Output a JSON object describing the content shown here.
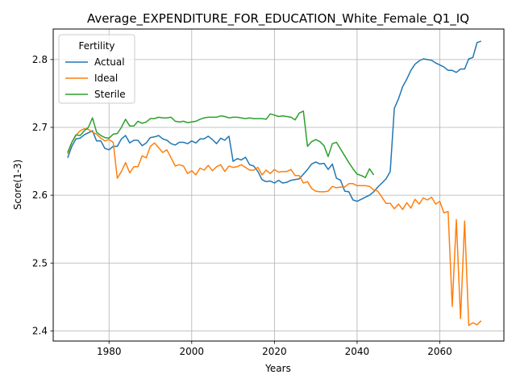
{
  "chart_data": {
    "type": "line",
    "title": "Average_EXPENDITURE_FOR_EDUCATION_White_Female_Q1_IQ",
    "xlabel": "Years",
    "ylabel": "Score(1-3)",
    "xlim": [
      1966.5,
      2075.5
    ],
    "ylim": [
      2.385,
      2.845
    ],
    "xticks": [
      1980,
      2000,
      2020,
      2040,
      2060
    ],
    "yticks": [
      2.4,
      2.5,
      2.6,
      2.7,
      2.8
    ],
    "grid": true,
    "legend": {
      "title": "Fertility",
      "placement": "upper left"
    },
    "series": [
      {
        "name": "Actual",
        "color": "#1f77b4",
        "points": [
          [
            1970,
            2.655
          ],
          [
            1971,
            2.672
          ],
          [
            1972,
            2.683
          ],
          [
            1973,
            2.684
          ],
          [
            1974,
            2.689
          ],
          [
            1975,
            2.692
          ],
          [
            1976,
            2.695
          ],
          [
            1977,
            2.68
          ],
          [
            1978,
            2.68
          ],
          [
            1979,
            2.669
          ],
          [
            1980,
            2.667
          ],
          [
            1981,
            2.672
          ],
          [
            1982,
            2.672
          ],
          [
            1983,
            2.683
          ],
          [
            1984,
            2.688
          ],
          [
            1985,
            2.677
          ],
          [
            1986,
            2.681
          ],
          [
            1987,
            2.681
          ],
          [
            1988,
            2.673
          ],
          [
            1989,
            2.677
          ],
          [
            1990,
            2.685
          ],
          [
            1991,
            2.686
          ],
          [
            1992,
            2.688
          ],
          [
            1993,
            2.683
          ],
          [
            1994,
            2.681
          ],
          [
            1995,
            2.676
          ],
          [
            1996,
            2.674
          ],
          [
            1997,
            2.678
          ],
          [
            1998,
            2.678
          ],
          [
            1999,
            2.676
          ],
          [
            2000,
            2.68
          ],
          [
            2001,
            2.677
          ],
          [
            2002,
            2.683
          ],
          [
            2003,
            2.683
          ],
          [
            2004,
            2.687
          ],
          [
            2005,
            2.682
          ],
          [
            2006,
            2.676
          ],
          [
            2007,
            2.684
          ],
          [
            2008,
            2.681
          ],
          [
            2009,
            2.687
          ],
          [
            2010,
            2.65
          ],
          [
            2011,
            2.654
          ],
          [
            2012,
            2.652
          ],
          [
            2013,
            2.656
          ],
          [
            2014,
            2.645
          ],
          [
            2015,
            2.643
          ],
          [
            2016,
            2.635
          ],
          [
            2017,
            2.623
          ],
          [
            2018,
            2.62
          ],
          [
            2019,
            2.621
          ],
          [
            2020,
            2.618
          ],
          [
            2021,
            2.622
          ],
          [
            2022,
            2.618
          ],
          [
            2023,
            2.619
          ],
          [
            2024,
            2.622
          ],
          [
            2025,
            2.623
          ],
          [
            2026,
            2.624
          ],
          [
            2027,
            2.631
          ],
          [
            2028,
            2.638
          ],
          [
            2029,
            2.646
          ],
          [
            2030,
            2.649
          ],
          [
            2031,
            2.646
          ],
          [
            2032,
            2.647
          ],
          [
            2033,
            2.638
          ],
          [
            2034,
            2.646
          ],
          [
            2035,
            2.625
          ],
          [
            2036,
            2.622
          ],
          [
            2037,
            2.606
          ],
          [
            2038,
            2.605
          ],
          [
            2039,
            2.593
          ],
          [
            2040,
            2.591
          ],
          [
            2041,
            2.594
          ],
          [
            2042,
            2.597
          ],
          [
            2043,
            2.6
          ],
          [
            2044,
            2.605
          ],
          [
            2045,
            2.612
          ],
          [
            2046,
            2.618
          ],
          [
            2047,
            2.624
          ],
          [
            2048,
            2.635
          ],
          [
            2049,
            2.728
          ],
          [
            2050,
            2.742
          ],
          [
            2051,
            2.76
          ],
          [
            2052,
            2.771
          ],
          [
            2053,
            2.784
          ],
          [
            2054,
            2.793
          ],
          [
            2055,
            2.798
          ],
          [
            2056,
            2.801
          ],
          [
            2057,
            2.8
          ],
          [
            2058,
            2.799
          ],
          [
            2059,
            2.795
          ],
          [
            2060,
            2.792
          ],
          [
            2061,
            2.789
          ],
          [
            2062,
            2.784
          ],
          [
            2063,
            2.784
          ],
          [
            2064,
            2.781
          ],
          [
            2065,
            2.786
          ],
          [
            2066,
            2.786
          ],
          [
            2067,
            2.801
          ],
          [
            2068,
            2.803
          ],
          [
            2069,
            2.825
          ],
          [
            2070,
            2.827
          ]
        ]
      },
      {
        "name": "Ideal",
        "color": "#ff7f0e",
        "points": [
          [
            1970,
            2.661
          ],
          [
            1971,
            2.678
          ],
          [
            1972,
            2.688
          ],
          [
            1973,
            2.695
          ],
          [
            1974,
            2.698
          ],
          [
            1975,
            2.697
          ],
          [
            1976,
            2.693
          ],
          [
            1977,
            2.69
          ],
          [
            1978,
            2.684
          ],
          [
            1979,
            2.68
          ],
          [
            1980,
            2.682
          ],
          [
            1981,
            2.678
          ],
          [
            1982,
            2.625
          ],
          [
            1983,
            2.635
          ],
          [
            1984,
            2.648
          ],
          [
            1985,
            2.633
          ],
          [
            1986,
            2.642
          ],
          [
            1987,
            2.642
          ],
          [
            1988,
            2.658
          ],
          [
            1989,
            2.655
          ],
          [
            1990,
            2.672
          ],
          [
            1991,
            2.677
          ],
          [
            1992,
            2.67
          ],
          [
            1993,
            2.663
          ],
          [
            1994,
            2.667
          ],
          [
            1995,
            2.655
          ],
          [
            1996,
            2.643
          ],
          [
            1997,
            2.645
          ],
          [
            1998,
            2.643
          ],
          [
            1999,
            2.632
          ],
          [
            2000,
            2.636
          ],
          [
            2001,
            2.63
          ],
          [
            2002,
            2.64
          ],
          [
            2003,
            2.637
          ],
          [
            2004,
            2.644
          ],
          [
            2005,
            2.636
          ],
          [
            2006,
            2.642
          ],
          [
            2007,
            2.645
          ],
          [
            2008,
            2.635
          ],
          [
            2009,
            2.643
          ],
          [
            2010,
            2.641
          ],
          [
            2011,
            2.642
          ],
          [
            2012,
            2.645
          ],
          [
            2013,
            2.641
          ],
          [
            2014,
            2.637
          ],
          [
            2015,
            2.637
          ],
          [
            2016,
            2.641
          ],
          [
            2017,
            2.63
          ],
          [
            2018,
            2.637
          ],
          [
            2019,
            2.632
          ],
          [
            2020,
            2.638
          ],
          [
            2021,
            2.634
          ],
          [
            2022,
            2.635
          ],
          [
            2023,
            2.635
          ],
          [
            2024,
            2.638
          ],
          [
            2025,
            2.629
          ],
          [
            2026,
            2.629
          ],
          [
            2027,
            2.618
          ],
          [
            2028,
            2.62
          ],
          [
            2029,
            2.61
          ],
          [
            2030,
            2.606
          ],
          [
            2031,
            2.605
          ],
          [
            2032,
            2.605
          ],
          [
            2033,
            2.606
          ],
          [
            2034,
            2.613
          ],
          [
            2035,
            2.611
          ],
          [
            2036,
            2.612
          ],
          [
            2037,
            2.612
          ],
          [
            2038,
            2.617
          ],
          [
            2039,
            2.617
          ],
          [
            2040,
            2.614
          ],
          [
            2041,
            2.614
          ],
          [
            2042,
            2.614
          ],
          [
            2043,
            2.613
          ],
          [
            2044,
            2.608
          ],
          [
            2045,
            2.606
          ],
          [
            2046,
            2.597
          ],
          [
            2047,
            2.588
          ],
          [
            2048,
            2.588
          ],
          [
            2049,
            2.58
          ],
          [
            2050,
            2.587
          ],
          [
            2051,
            2.579
          ],
          [
            2052,
            2.589
          ],
          [
            2053,
            2.581
          ],
          [
            2054,
            2.594
          ],
          [
            2055,
            2.587
          ],
          [
            2056,
            2.596
          ],
          [
            2057,
            2.593
          ],
          [
            2058,
            2.597
          ],
          [
            2059,
            2.587
          ],
          [
            2060,
            2.591
          ],
          [
            2061,
            2.574
          ],
          [
            2062,
            2.576
          ],
          [
            2063,
            2.436
          ],
          [
            2064,
            2.564
          ],
          [
            2065,
            2.418
          ],
          [
            2066,
            2.562
          ],
          [
            2067,
            2.408
          ],
          [
            2068,
            2.412
          ],
          [
            2069,
            2.409
          ],
          [
            2070,
            2.415
          ]
        ]
      },
      {
        "name": "Sterile",
        "color": "#2ca02c",
        "points": [
          [
            1970,
            2.663
          ],
          [
            1971,
            2.678
          ],
          [
            1972,
            2.689
          ],
          [
            1973,
            2.688
          ],
          [
            1974,
            2.695
          ],
          [
            1975,
            2.7
          ],
          [
            1976,
            2.714
          ],
          [
            1977,
            2.693
          ],
          [
            1978,
            2.688
          ],
          [
            1979,
            2.685
          ],
          [
            1980,
            2.684
          ],
          [
            1981,
            2.69
          ],
          [
            1982,
            2.691
          ],
          [
            1983,
            2.7
          ],
          [
            1984,
            2.712
          ],
          [
            1985,
            2.702
          ],
          [
            1986,
            2.702
          ],
          [
            1987,
            2.709
          ],
          [
            1988,
            2.706
          ],
          [
            1989,
            2.708
          ],
          [
            1990,
            2.713
          ],
          [
            1991,
            2.713
          ],
          [
            1992,
            2.715
          ],
          [
            1993,
            2.714
          ],
          [
            1994,
            2.714
          ],
          [
            1995,
            2.715
          ],
          [
            1996,
            2.709
          ],
          [
            1997,
            2.708
          ],
          [
            1998,
            2.709
          ],
          [
            1999,
            2.707
          ],
          [
            2000,
            2.708
          ],
          [
            2001,
            2.709
          ],
          [
            2002,
            2.712
          ],
          [
            2003,
            2.714
          ],
          [
            2004,
            2.715
          ],
          [
            2005,
            2.715
          ],
          [
            2006,
            2.715
          ],
          [
            2007,
            2.717
          ],
          [
            2008,
            2.716
          ],
          [
            2009,
            2.714
          ],
          [
            2010,
            2.715
          ],
          [
            2011,
            2.715
          ],
          [
            2012,
            2.714
          ],
          [
            2013,
            2.713
          ],
          [
            2014,
            2.714
          ],
          [
            2015,
            2.713
          ],
          [
            2016,
            2.713
          ],
          [
            2017,
            2.713
          ],
          [
            2018,
            2.712
          ],
          [
            2019,
            2.72
          ],
          [
            2020,
            2.718
          ],
          [
            2021,
            2.716
          ],
          [
            2022,
            2.717
          ],
          [
            2023,
            2.716
          ],
          [
            2024,
            2.715
          ],
          [
            2025,
            2.711
          ],
          [
            2026,
            2.721
          ],
          [
            2027,
            2.724
          ],
          [
            2028,
            2.672
          ],
          [
            2029,
            2.679
          ],
          [
            2030,
            2.682
          ],
          [
            2031,
            2.679
          ],
          [
            2032,
            2.673
          ],
          [
            2033,
            2.657
          ],
          [
            2034,
            2.676
          ],
          [
            2035,
            2.678
          ],
          [
            2036,
            2.668
          ],
          [
            2037,
            2.658
          ],
          [
            2038,
            2.648
          ],
          [
            2039,
            2.639
          ],
          [
            2040,
            2.631
          ],
          [
            2041,
            2.629
          ],
          [
            2042,
            2.626
          ],
          [
            2043,
            2.639
          ],
          [
            2044,
            2.63
          ]
        ]
      }
    ]
  }
}
